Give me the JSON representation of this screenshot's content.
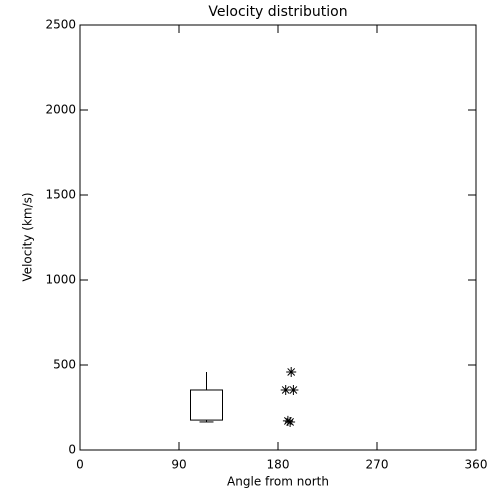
{
  "chart_data": {
    "type": "box",
    "title": "Velocity distribution",
    "x_label": "Angle from north",
    "y_label": "Velocity (km/s)",
    "xlim": [
      0,
      360
    ],
    "xticks": [
      0,
      90,
      180,
      270,
      360
    ],
    "ylim": [
      0,
      2500
    ],
    "yticks": [
      0,
      500,
      1000,
      1500,
      2000,
      2500
    ],
    "color": "#000000",
    "boxes": [
      {
        "x": 115,
        "min": 165,
        "q1": 176,
        "q3": 353,
        "max": 459
      }
    ],
    "points": {
      "type": "scatter",
      "x": [
        192,
        187,
        194,
        189,
        191
      ],
      "y": [
        459,
        353,
        353,
        171,
        165
      ]
    }
  }
}
